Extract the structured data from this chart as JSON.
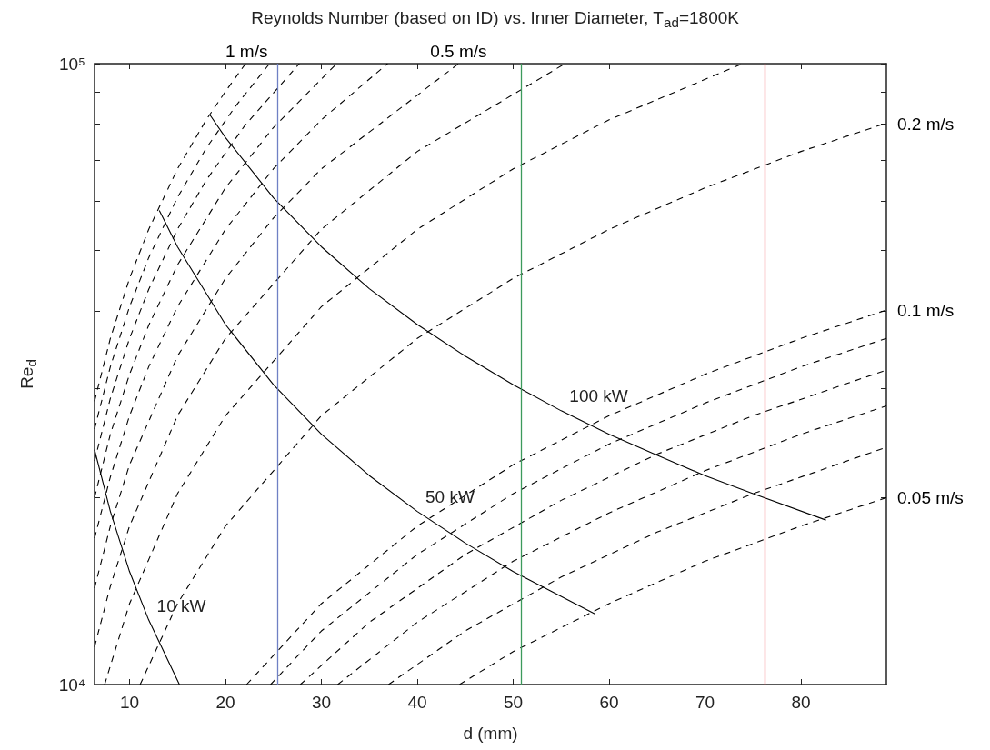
{
  "chart_data": {
    "type": "line",
    "title": "Reynolds Number (based on ID) vs. Inner Diameter, T$_{ad}$=1800K",
    "xlabel": "d (mm)",
    "ylabel": "Re$_{d}$",
    "xlim": [
      6.35,
      88.9
    ],
    "xticks": [
      10,
      20,
      30,
      40,
      50,
      60,
      70,
      80
    ],
    "ylim": [
      10000,
      100000
    ],
    "yticks": [
      {
        "value": 10000,
        "label": "10⁴"
      },
      {
        "value": 20000,
        "label": null
      },
      {
        "value": 30000,
        "label": null
      },
      {
        "value": 40000,
        "label": null
      },
      {
        "value": 50000,
        "label": null
      },
      {
        "value": 60000,
        "label": null
      },
      {
        "value": 70000,
        "label": null
      },
      {
        "value": 80000,
        "label": null
      },
      {
        "value": 90000,
        "label": null
      },
      {
        "value": 100000,
        "label": "10⁵"
      }
    ],
    "log": "y",
    "grid": false,
    "marker": "none",
    "series": [
      {
        "type": "line",
        "color": "#000000",
        "line_style": "dashed",
        "x": [
          44.4,
          50,
          60,
          70,
          80,
          88.9
        ],
        "values": [
          10000,
          11300,
          13500,
          15800,
          18000,
          20000
        ]
      },
      {
        "type": "line",
        "color": "#000000",
        "line_style": "dashed",
        "x": [
          37,
          45,
          55,
          65,
          75,
          88.9
        ],
        "values": [
          10000,
          12200,
          14900,
          17600,
          20300,
          24100
        ]
      },
      {
        "type": "line",
        "color": "#000000",
        "line_style": "dashed",
        "x": [
          31.7,
          40,
          50,
          60,
          70,
          80,
          88.9
        ],
        "values": [
          10000,
          12600,
          15800,
          18900,
          22100,
          25300,
          28100
        ]
      },
      {
        "type": "line",
        "color": "#000000",
        "line_style": "dashed",
        "x": [
          27.8,
          35,
          45,
          55,
          65,
          75,
          88.9
        ],
        "values": [
          10000,
          12600,
          16200,
          19800,
          23500,
          27100,
          32100
        ]
      },
      {
        "type": "line",
        "color": "#000000",
        "line_style": "dashed",
        "x": [
          24.7,
          30,
          40,
          50,
          60,
          70,
          80,
          88.9
        ],
        "values": [
          10000,
          12200,
          16200,
          20300,
          24400,
          28400,
          32500,
          36100
        ]
      },
      {
        "type": "line",
        "color": "#000000",
        "line_style": "dashed",
        "x": [
          22.2,
          30,
          40,
          50,
          60,
          70,
          80,
          88.9
        ],
        "values": [
          10000,
          13500,
          18000,
          22600,
          27100,
          31600,
          36100,
          40100
        ]
      },
      {
        "type": "line",
        "color": "#000000",
        "line_style": "dashed",
        "x": [
          11.1,
          15,
          20,
          30,
          40,
          50,
          60,
          70,
          80,
          88.9
        ],
        "values": [
          10000,
          13500,
          18000,
          27100,
          36100,
          45100,
          54100,
          63100,
          72200,
          80200
        ]
      },
      {
        "type": "line",
        "color": "#000000",
        "line_style": "dashed",
        "x": [
          7.4,
          10,
          15,
          20,
          30,
          40,
          50,
          60,
          73.9
        ],
        "values": [
          10000,
          13500,
          20300,
          27100,
          40600,
          54100,
          67700,
          81200,
          100000
        ]
      },
      {
        "type": "line",
        "color": "#000000",
        "line_style": "dashed",
        "x": [
          6.35,
          8,
          10,
          15,
          20,
          30,
          40,
          55.4
        ],
        "values": [
          11500,
          14400,
          18000,
          27100,
          36100,
          54100,
          72200,
          100000
        ]
      },
      {
        "type": "line",
        "color": "#000000",
        "line_style": "dashed",
        "x": [
          6.35,
          8,
          10,
          15,
          20,
          25,
          30,
          44.3
        ],
        "values": [
          14300,
          18000,
          22600,
          33800,
          45100,
          56400,
          67700,
          100000
        ]
      },
      {
        "type": "line",
        "color": "#000000",
        "line_style": "dashed",
        "x": [
          6.35,
          8,
          10,
          12,
          15,
          20,
          25,
          30,
          36.9
        ],
        "values": [
          17200,
          21600,
          27100,
          32500,
          40600,
          54100,
          67700,
          81200,
          100000
        ]
      },
      {
        "type": "line",
        "color": "#000000",
        "line_style": "dashed",
        "x": [
          6.35,
          8,
          10,
          12,
          15,
          20,
          25,
          31.6
        ],
        "values": [
          20000,
          25300,
          31600,
          37900,
          47400,
          63100,
          78900,
          100000
        ]
      },
      {
        "type": "line",
        "color": "#000000",
        "line_style": "dashed",
        "x": [
          6.35,
          8,
          10,
          12,
          15,
          18,
          22,
          27.7
        ],
        "values": [
          22900,
          28900,
          36100,
          43300,
          54100,
          64900,
          79400,
          100000
        ]
      },
      {
        "type": "line",
        "color": "#000000",
        "line_style": "dashed",
        "x": [
          6.35,
          8,
          10,
          12,
          15,
          18,
          21,
          24.6
        ],
        "values": [
          25800,
          32500,
          40600,
          48700,
          60900,
          73100,
          85200,
          100000
        ]
      },
      {
        "type": "line",
        "color": "#000000",
        "line_style": "dashed",
        "x": [
          6.35,
          8,
          10,
          12,
          15,
          18,
          20,
          22.1
        ],
        "values": [
          28600,
          36100,
          45100,
          54100,
          67700,
          81200,
          90200,
          100000
        ]
      },
      {
        "name": "100 kW",
        "color": "#000000",
        "line_style": "solid",
        "x": [
          18.4,
          20,
          25,
          30,
          35,
          40,
          45,
          50,
          55,
          60,
          65,
          70,
          75,
          82.6
        ],
        "values": [
          82600,
          76000,
          60800,
          50700,
          43400,
          38000,
          33800,
          30400,
          27600,
          25300,
          23400,
          21700,
          20300,
          18400
        ]
      },
      {
        "name": "50 kW",
        "color": "#000000",
        "line_style": "solid",
        "x": [
          13.1,
          15,
          20,
          25,
          30,
          35,
          40,
          45,
          50,
          58.5
        ],
        "values": [
          58000,
          50700,
          38000,
          30400,
          25300,
          21700,
          19000,
          16900,
          15200,
          13000
        ]
      },
      {
        "name": "10 kW",
        "color": "#000000",
        "line_style": "solid",
        "x": [
          6.35,
          8,
          10,
          12,
          15.2
        ],
        "values": [
          23900,
          19000,
          15200,
          12700,
          10000
        ]
      }
    ],
    "ref_lines": [
      {
        "axis": "x",
        "value": 25.4,
        "color": "#6f80c4"
      },
      {
        "axis": "x",
        "value": 50.8,
        "color": "#3c9a5c"
      },
      {
        "axis": "x",
        "value": 76.2,
        "color": "#ee5d66"
      }
    ],
    "annotations": [
      {
        "text": "1 m/s",
        "x": 22.2,
        "y": 100000
      },
      {
        "text": "0.5 m/s",
        "x": 44.3,
        "y": 100000
      },
      {
        "text": "0.2 m/s",
        "x": 88.9,
        "y": 80000
      },
      {
        "text": "0.1 m/s",
        "x": 88.9,
        "y": 40000
      },
      {
        "text": "0.05 m/s",
        "x": 88.9,
        "y": 20000
      }
    ]
  }
}
